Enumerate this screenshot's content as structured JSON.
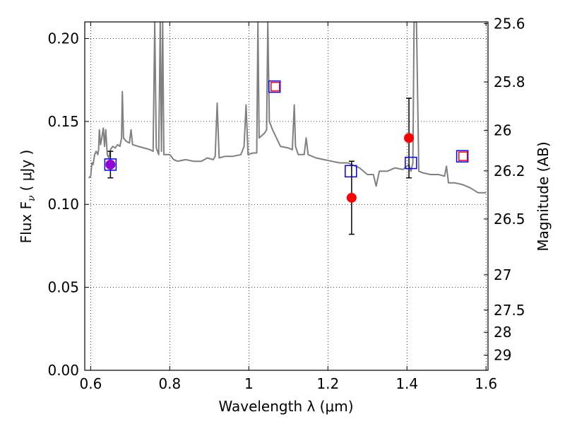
{
  "chart_data": {
    "type": "scatter",
    "xlabel": "Wavelength  λ (μm)",
    "ylabel": "Flux  F",
    "ylabel_sub": "ν",
    "ylabel_unit": "( μJy )",
    "y2label": "Magnitude (AB)",
    "xlim": [
      0.585,
      1.605
    ],
    "ylim": [
      0.0,
      0.21
    ],
    "grid": true,
    "x_ticks": [
      {
        "value": 0.6,
        "label": "0.6"
      },
      {
        "value": 0.8,
        "label": "0.8"
      },
      {
        "value": 1.0,
        "label": "1"
      },
      {
        "value": 1.2,
        "label": "1.2"
      },
      {
        "value": 1.4,
        "label": "1.4"
      },
      {
        "value": 1.6,
        "label": "1.6"
      }
    ],
    "y_ticks": [
      {
        "value": 0.0,
        "label": "0.00"
      },
      {
        "value": 0.05,
        "label": "0.05"
      },
      {
        "value": 0.1,
        "label": "0.10"
      },
      {
        "value": 0.15,
        "label": "0.15"
      },
      {
        "value": 0.2,
        "label": "0.20"
      }
    ],
    "mag_ticks": [
      {
        "value": 25.6,
        "label": "25.6"
      },
      {
        "value": 25.8,
        "label": "25.8"
      },
      {
        "value": 26.0,
        "label": "26"
      },
      {
        "value": 26.2,
        "label": "26.2"
      },
      {
        "value": 26.5,
        "label": "26.5"
      },
      {
        "value": 27.0,
        "label": "27"
      },
      {
        "value": 27.5,
        "label": "27.5"
      },
      {
        "value": 28.0,
        "label": "28"
      },
      {
        "value": 29.0,
        "label": "29"
      }
    ],
    "model_spectrum": {
      "color": "#808080",
      "points": [
        [
          0.595,
          0.116
        ],
        [
          0.6,
          0.117
        ],
        [
          0.603,
          0.125
        ],
        [
          0.606,
          0.124
        ],
        [
          0.61,
          0.13
        ],
        [
          0.614,
          0.132
        ],
        [
          0.618,
          0.13
        ],
        [
          0.62,
          0.133
        ],
        [
          0.622,
          0.145
        ],
        [
          0.625,
          0.136
        ],
        [
          0.628,
          0.14
        ],
        [
          0.632,
          0.146
        ],
        [
          0.635,
          0.135
        ],
        [
          0.638,
          0.145
        ],
        [
          0.642,
          0.13
        ],
        [
          0.646,
          0.128
        ],
        [
          0.65,
          0.133
        ],
        [
          0.656,
          0.135
        ],
        [
          0.662,
          0.134
        ],
        [
          0.668,
          0.136
        ],
        [
          0.674,
          0.135
        ],
        [
          0.678,
          0.14
        ],
        [
          0.68,
          0.168
        ],
        [
          0.683,
          0.14
        ],
        [
          0.69,
          0.138
        ],
        [
          0.698,
          0.137
        ],
        [
          0.702,
          0.145
        ],
        [
          0.706,
          0.136
        ],
        [
          0.72,
          0.135
        ],
        [
          0.735,
          0.134
        ],
        [
          0.75,
          0.133
        ],
        [
          0.758,
          0.132
        ],
        [
          0.762,
          0.21
        ],
        [
          0.766,
          0.134
        ],
        [
          0.772,
          0.13
        ],
        [
          0.776,
          0.21
        ],
        [
          0.779,
          0.132
        ],
        [
          0.782,
          0.21
        ],
        [
          0.785,
          0.13
        ],
        [
          0.79,
          0.13
        ],
        [
          0.8,
          0.13
        ],
        [
          0.81,
          0.127
        ],
        [
          0.82,
          0.126
        ],
        [
          0.84,
          0.127
        ],
        [
          0.86,
          0.126
        ],
        [
          0.88,
          0.126
        ],
        [
          0.895,
          0.128
        ],
        [
          0.91,
          0.127
        ],
        [
          0.915,
          0.129
        ],
        [
          0.92,
          0.161
        ],
        [
          0.925,
          0.128
        ],
        [
          0.94,
          0.129
        ],
        [
          0.96,
          0.129
        ],
        [
          0.98,
          0.13
        ],
        [
          0.988,
          0.135
        ],
        [
          0.993,
          0.16
        ],
        [
          0.998,
          0.13
        ],
        [
          1.01,
          0.131
        ],
        [
          1.02,
          0.131
        ],
        [
          1.023,
          0.21
        ],
        [
          1.026,
          0.14
        ],
        [
          1.04,
          0.143
        ],
        [
          1.045,
          0.145
        ],
        [
          1.048,
          0.21
        ],
        [
          1.052,
          0.15
        ],
        [
          1.06,
          0.145
        ],
        [
          1.07,
          0.14
        ],
        [
          1.08,
          0.135
        ],
        [
          1.1,
          0.134
        ],
        [
          1.11,
          0.133
        ],
        [
          1.115,
          0.16
        ],
        [
          1.118,
          0.135
        ],
        [
          1.125,
          0.13
        ],
        [
          1.14,
          0.13
        ],
        [
          1.145,
          0.14
        ],
        [
          1.15,
          0.13
        ],
        [
          1.17,
          0.128
        ],
        [
          1.19,
          0.127
        ],
        [
          1.21,
          0.126
        ],
        [
          1.23,
          0.125
        ],
        [
          1.25,
          0.125
        ],
        [
          1.28,
          0.122
        ],
        [
          1.3,
          0.118
        ],
        [
          1.315,
          0.118
        ],
        [
          1.322,
          0.111
        ],
        [
          1.33,
          0.12
        ],
        [
          1.35,
          0.12
        ],
        [
          1.37,
          0.122
        ],
        [
          1.39,
          0.121
        ],
        [
          1.405,
          0.124
        ],
        [
          1.41,
          0.12
        ],
        [
          1.415,
          0.125
        ],
        [
          1.418,
          0.21
        ],
        [
          1.424,
          0.21
        ],
        [
          1.43,
          0.12
        ],
        [
          1.44,
          0.119
        ],
        [
          1.46,
          0.118
        ],
        [
          1.48,
          0.118
        ],
        [
          1.495,
          0.117
        ],
        [
          1.5,
          0.123
        ],
        [
          1.505,
          0.113
        ],
        [
          1.52,
          0.113
        ],
        [
          1.54,
          0.112
        ],
        [
          1.56,
          0.11
        ],
        [
          1.58,
          0.107
        ],
        [
          1.6,
          0.107
        ]
      ]
    },
    "observed": {
      "color": "#ff0000",
      "points": [
        {
          "x": 0.65,
          "y": 0.124,
          "err": 0.008
        },
        {
          "x": 1.26,
          "y": 0.104,
          "err": 0.022
        },
        {
          "x": 1.405,
          "y": 0.14,
          "err": 0.024
        }
      ]
    },
    "model_photometry": {
      "color": "#0000ff",
      "points": [
        {
          "x": 0.65,
          "y": 0.124
        },
        {
          "x": 1.065,
          "y": 0.171
        },
        {
          "x": 1.258,
          "y": 0.12
        },
        {
          "x": 1.41,
          "y": 0.125
        },
        {
          "x": 1.54,
          "y": 0.129
        }
      ]
    },
    "upper_limits": {
      "color": "#ff0000",
      "points": [
        {
          "x": 1.067,
          "y": 0.171
        },
        {
          "x": 1.542,
          "y": 0.129
        }
      ]
    },
    "blended_marker": {
      "x": 0.65,
      "y": 0.124,
      "color": "#9400d3"
    }
  }
}
